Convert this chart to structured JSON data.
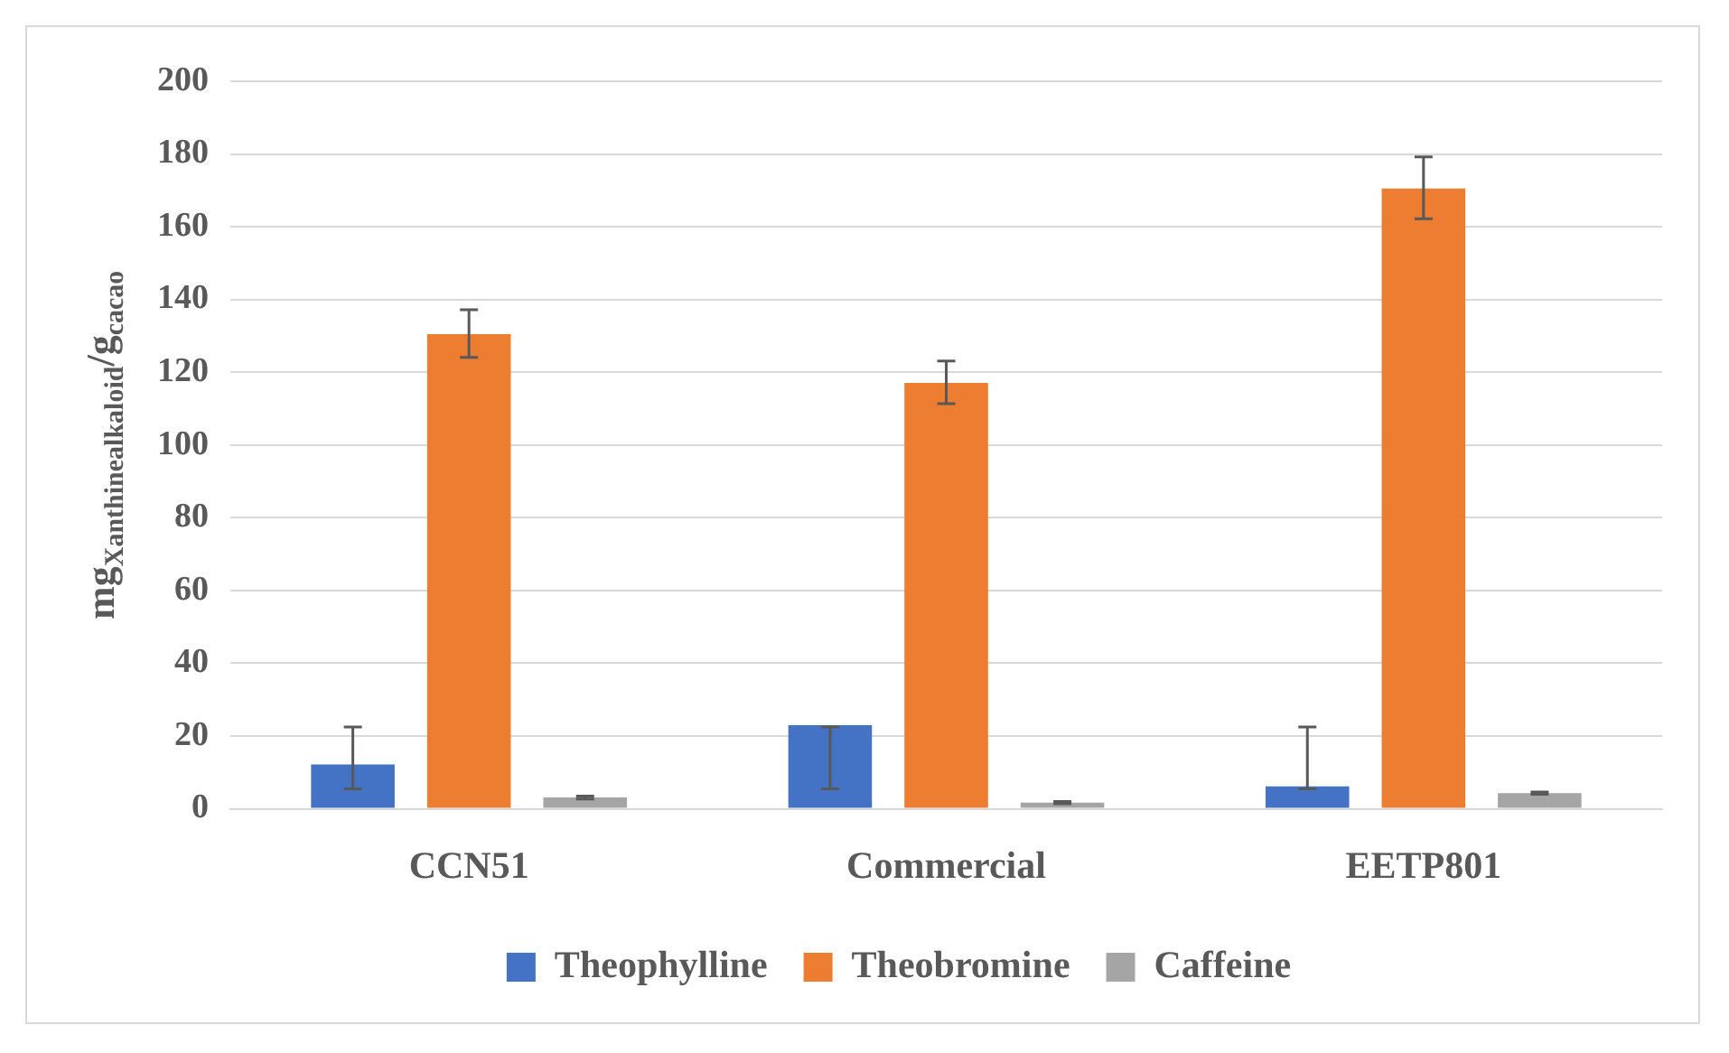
{
  "chart_data": {
    "type": "bar",
    "ylabel": "mg$_{Xanthinealkaloid}$/g$_{cacao}$",
    "categories": [
      "CCN51",
      "Commercial",
      "EETP801"
    ],
    "series": [
      {
        "name": "Theophylline",
        "color": "#4472c4",
        "values": [
          12.2,
          23.0,
          6.2
        ],
        "errors": [
          [
            5.5,
            22.5
          ],
          [
            5.5,
            22.5
          ],
          [
            5.5,
            22.5
          ]
        ]
      },
      {
        "name": "Theobromine",
        "color": "#ed7d31",
        "values": [
          130.5,
          117.1,
          170.5
        ],
        "errors": [
          [
            124.1,
            137.2
          ],
          [
            111.4,
            123.1
          ],
          [
            162.2,
            179.2
          ]
        ]
      },
      {
        "name": "Caffeine",
        "color": "#a5a5a5",
        "values": [
          3.1,
          1.7,
          4.3
        ],
        "errors": [
          0.4,
          0.3,
          0.3
        ]
      }
    ],
    "ylim": [
      0,
      200
    ],
    "yticks": [
      0,
      20,
      40,
      60,
      80,
      100,
      120,
      140,
      160,
      180,
      200
    ],
    "grid": "y",
    "legend": "bottom"
  }
}
